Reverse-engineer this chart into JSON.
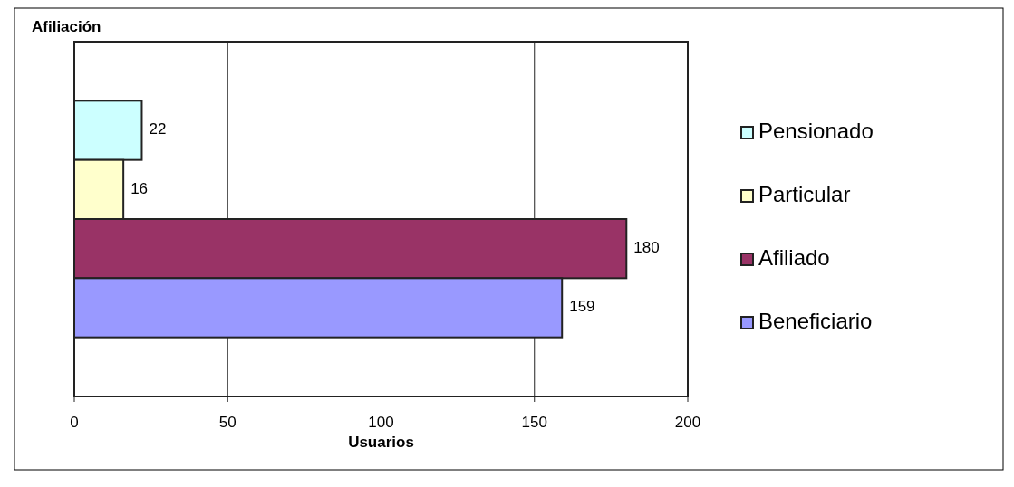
{
  "chart_data": {
    "type": "bar",
    "orientation": "horizontal",
    "title": "Afiliación",
    "xlabel": "Usuarios",
    "categories": [
      null
    ],
    "series": [
      {
        "name": "Pensionado",
        "color": "#ccffff",
        "values": [
          22
        ]
      },
      {
        "name": "Particular",
        "color": "#ffffcc",
        "values": [
          16
        ]
      },
      {
        "name": "Afiliado",
        "color": "#993366",
        "values": [
          180
        ]
      },
      {
        "name": "Beneficiario",
        "color": "#9999ff",
        "values": [
          159
        ]
      }
    ],
    "xlim": [
      0,
      200
    ],
    "xticks": [
      0,
      50,
      100,
      150,
      200
    ],
    "grid": "x",
    "legend": "right",
    "data_labels": true
  }
}
